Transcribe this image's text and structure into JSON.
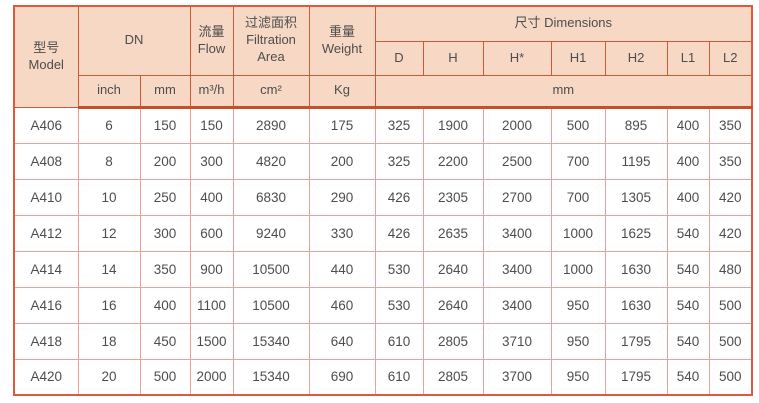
{
  "colors": {
    "header_bg": "#f6d8c5",
    "header_border": "#cc5a33",
    "body_border": "#f0a096",
    "outer_border": "#dd5a3a",
    "separator": "#c44f2c",
    "text": "#4d4d4d"
  },
  "table": {
    "header": {
      "model": "型号\nModel",
      "dn": "DN",
      "flow": "流量\nFlow",
      "filtration_area": "过滤面积\nFiltration\nArea",
      "weight": "重量\nWeight",
      "dimensions": "尺寸 Dimensions",
      "dim_cols": [
        "D",
        "H",
        "H*",
        "H1",
        "H2",
        "L1",
        "L2"
      ]
    },
    "units": {
      "inch": "inch",
      "mm": "mm",
      "flow": "m³/h",
      "area": "cm²",
      "weight": "Kg",
      "dims": "mm"
    },
    "column_names": [
      "model",
      "dn-inch",
      "dn-mm",
      "flow",
      "filtration-area",
      "weight",
      "dim-d",
      "dim-h",
      "dim-hstar",
      "dim-h1",
      "dim-h2",
      "dim-l1",
      "dim-l2"
    ],
    "rows": [
      [
        "A406",
        "6",
        "150",
        "150",
        "2890",
        "175",
        "325",
        "1900",
        "2000",
        "500",
        "895",
        "400",
        "350"
      ],
      [
        "A408",
        "8",
        "200",
        "300",
        "4820",
        "200",
        "325",
        "2200",
        "2500",
        "700",
        "1195",
        "400",
        "350"
      ],
      [
        "A410",
        "10",
        "250",
        "400",
        "6830",
        "290",
        "426",
        "2305",
        "2700",
        "700",
        "1305",
        "400",
        "420"
      ],
      [
        "A412",
        "12",
        "300",
        "600",
        "9240",
        "330",
        "426",
        "2635",
        "3400",
        "1000",
        "1625",
        "540",
        "420"
      ],
      [
        "A414",
        "14",
        "350",
        "900",
        "10500",
        "440",
        "530",
        "2640",
        "3400",
        "1000",
        "1630",
        "540",
        "480"
      ],
      [
        "A416",
        "16",
        "400",
        "1100",
        "10500",
        "460",
        "530",
        "2640",
        "3400",
        "950",
        "1630",
        "540",
        "500"
      ],
      [
        "A418",
        "18",
        "450",
        "1500",
        "15340",
        "640",
        "610",
        "2805",
        "3710",
        "950",
        "1795",
        "540",
        "500"
      ],
      [
        "A420",
        "20",
        "500",
        "2000",
        "15340",
        "690",
        "610",
        "2805",
        "3700",
        "950",
        "1795",
        "540",
        "500"
      ]
    ]
  }
}
